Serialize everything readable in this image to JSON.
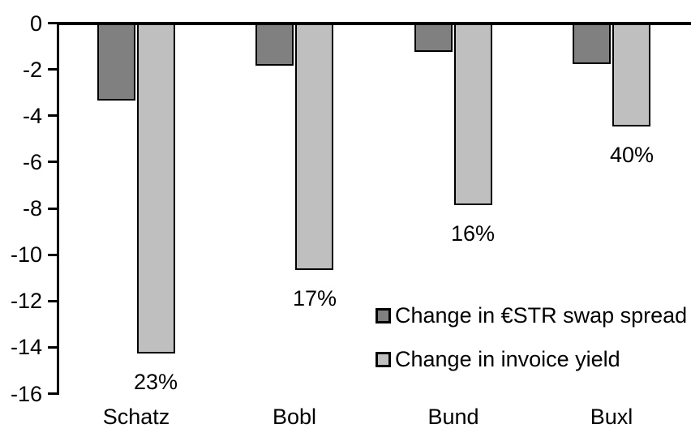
{
  "chart_data": {
    "type": "bar",
    "title": "",
    "xlabel": "",
    "ylabel": "",
    "categories": [
      "Schatz",
      "Bobl",
      "Bund",
      "Buxl"
    ],
    "series": [
      {
        "name": "Change in €STR swap spread",
        "color": "#808080",
        "values": [
          -3.3,
          -1.8,
          -1.2,
          -1.7
        ]
      },
      {
        "name": "Change in invoice yield",
        "color": "#bfbfbf",
        "values": [
          -14.2,
          -10.6,
          -7.8,
          -4.4
        ],
        "data_labels": [
          "23%",
          "17%",
          "16%",
          "40%"
        ]
      }
    ],
    "yticks": [
      "0",
      "-2",
      "-4",
      "-6",
      "-8",
      "-10",
      "-12",
      "-14",
      "-16"
    ],
    "ylim": [
      -16,
      0
    ],
    "grid": false,
    "legend": {
      "position": "inside-center-right",
      "entries": [
        "Change in €STR swap spread",
        "Change in invoice yield"
      ]
    },
    "colors": {
      "axis": "#000000",
      "bar_border": "#000000",
      "text": "#000000",
      "background": "#ffffff"
    }
  }
}
